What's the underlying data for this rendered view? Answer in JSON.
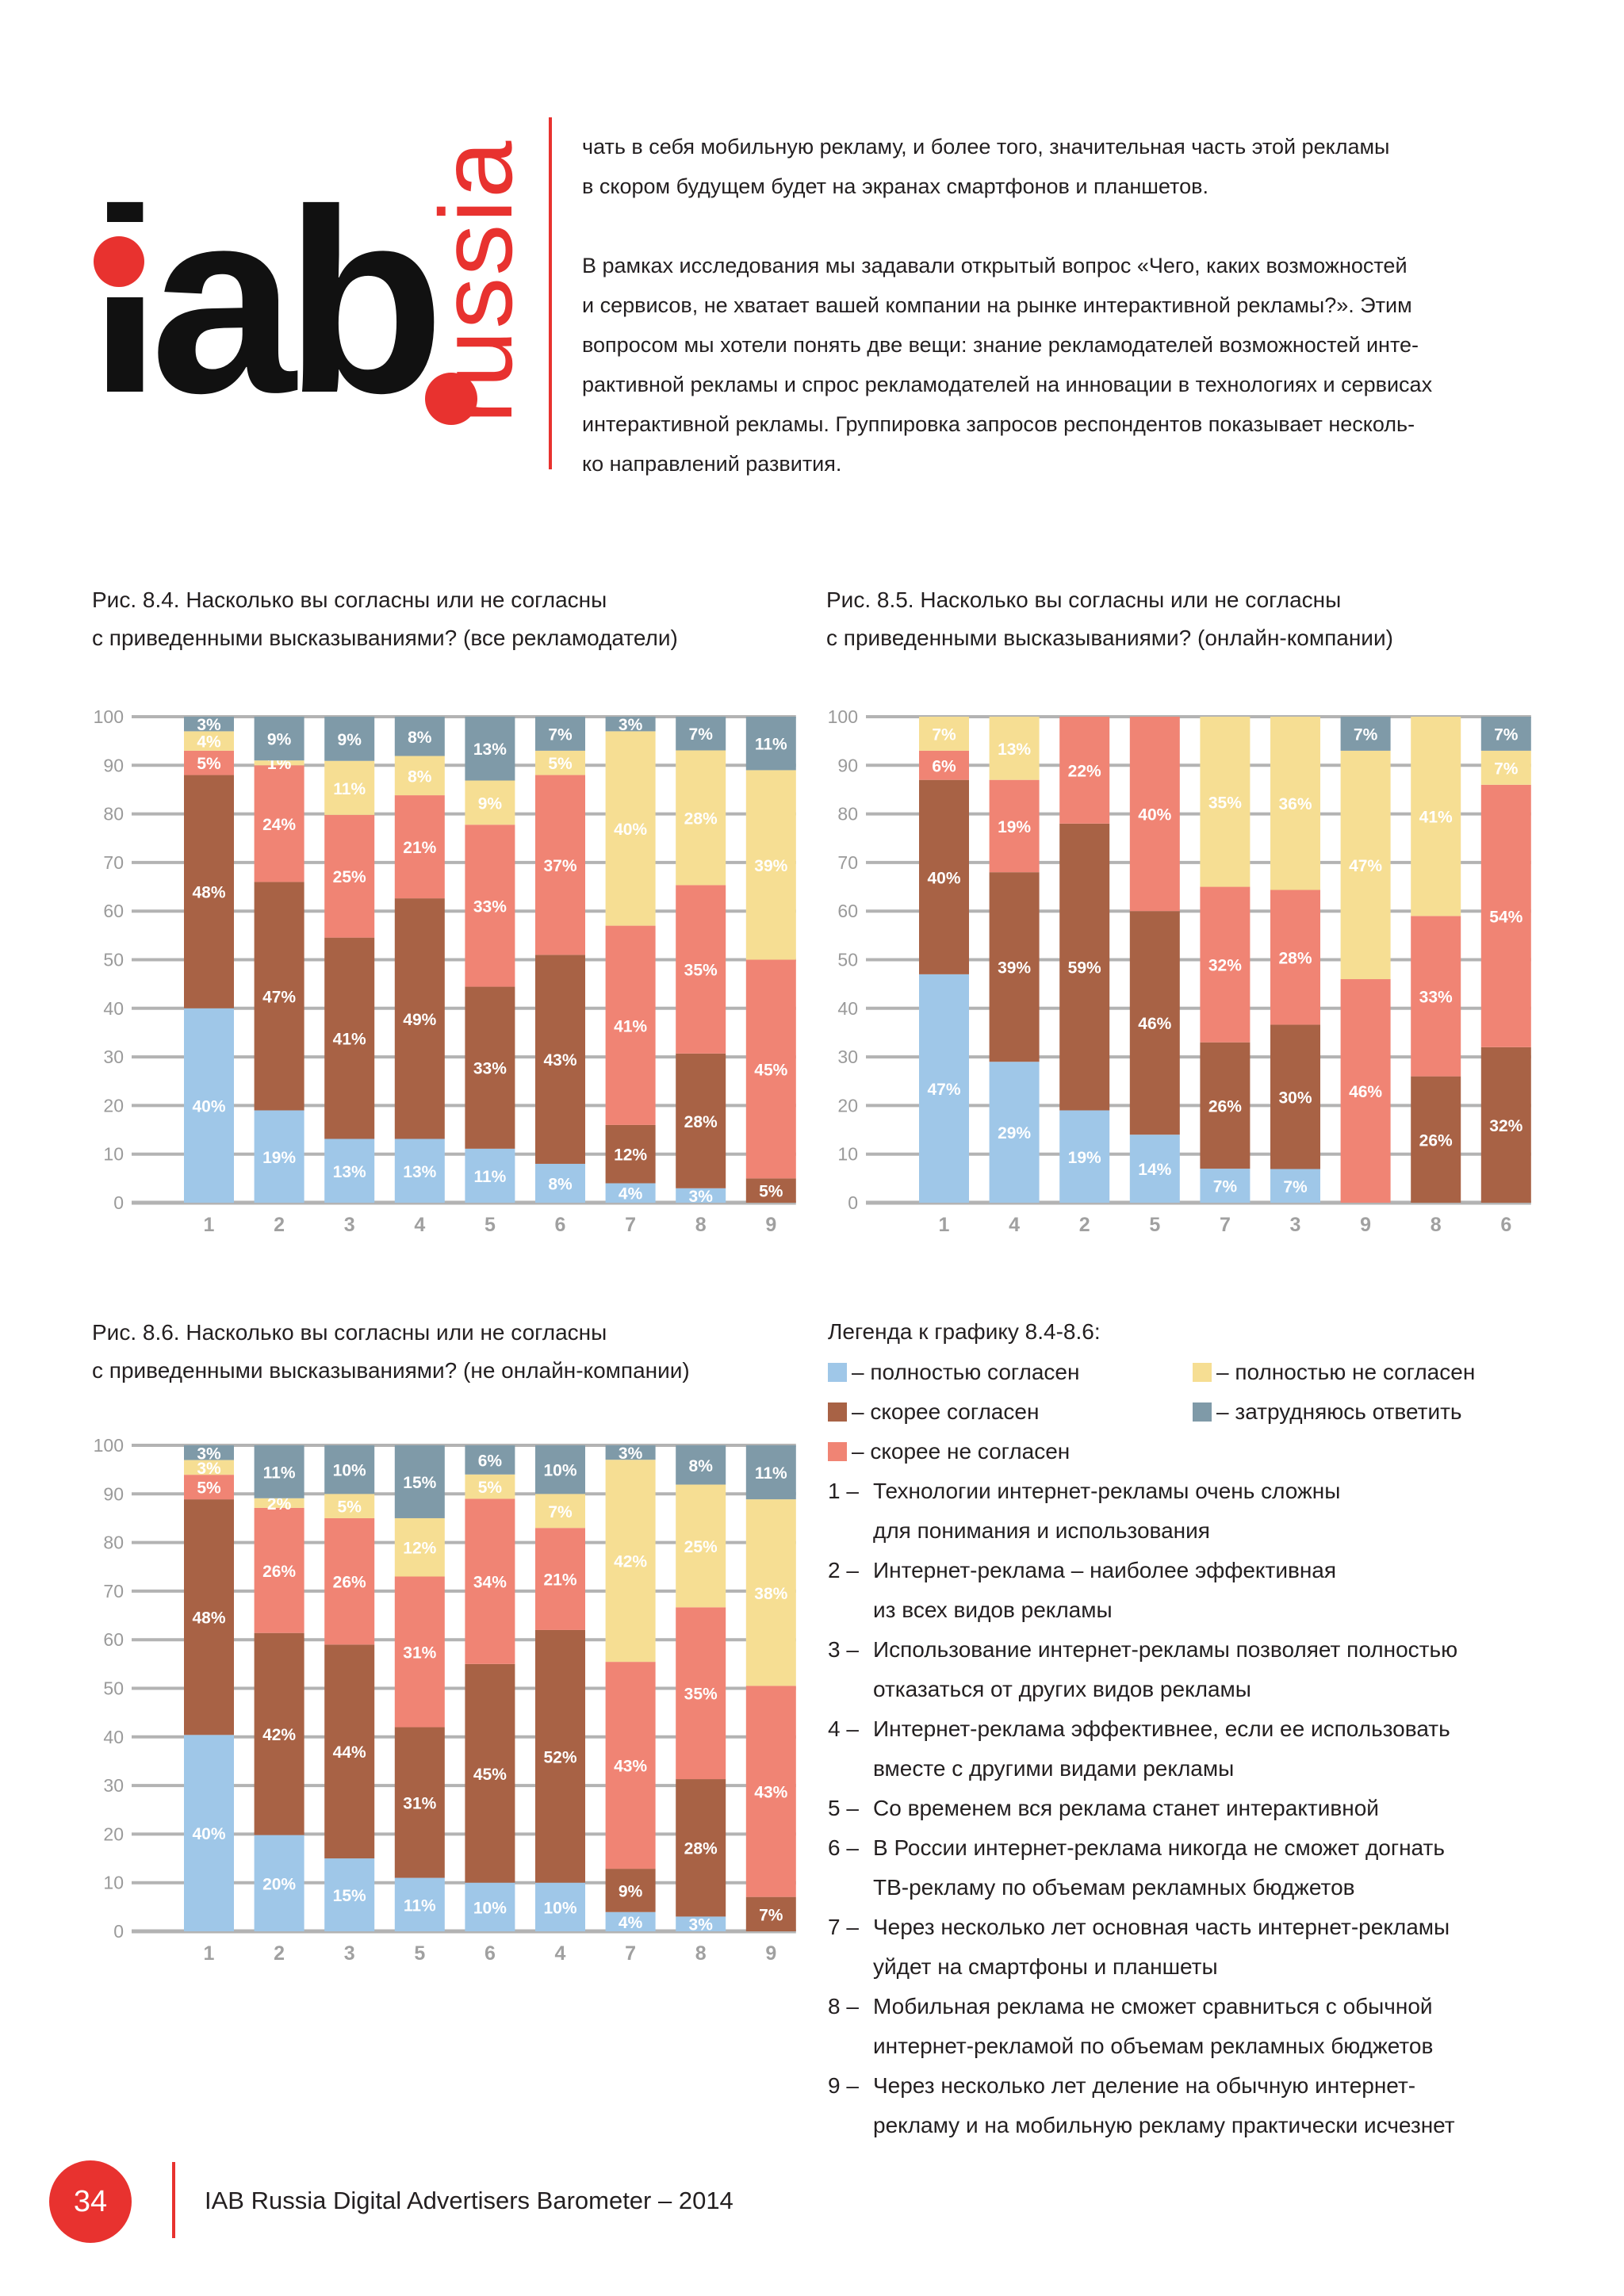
{
  "logo": {
    "main": "iab",
    "sub": "russia"
  },
  "intro": {
    "paragraph1": [
      "чать в себя мобильную рекламу, и более того, значительная часть этой рекламы",
      "в скором будущем будет на экранах смартфонов и планшетов."
    ],
    "paragraph2": [
      "В рамках исследования мы задавали открытый вопрос «Чего, каких возможностей",
      "и сервисов, не хватает вашей компании на рынке интерактивной рекламы?». Этим",
      "вопросом мы хотели понять две вещи: знание рекламодателей возможностей инте-",
      "рактивной рекламы и спрос рекламодателей на инновации в технологиях и сервисах",
      "интерактивной рекламы.  Группировка запросов респондентов показывает несколь-",
      "ко направлений развития."
    ]
  },
  "colors": {
    "fully_agree": "#9fc7e8",
    "rather_agree": "#a86245",
    "rather_disagree": "#f08474",
    "fully_disagree": "#f6de93",
    "hard_to_say": "#7f9aa8",
    "accent": "#e8322f"
  },
  "chart_data": [
    {
      "type": "bar",
      "stacked": true,
      "title": [
        "Рис. 8.4. Насколько вы согласны или не согласны",
        "с приведенными высказываниями? (все рекламодатели)"
      ],
      "ylim": [
        0,
        100
      ],
      "yticks": [
        "0",
        "10",
        "20",
        "30",
        "40",
        "50",
        "60",
        "70",
        "80",
        "90",
        "100"
      ],
      "grid": true,
      "categories": [
        "1",
        "2",
        "3",
        "4",
        "5",
        "6",
        "7",
        "8",
        "9"
      ],
      "series": [
        {
          "name": "полностью согласен",
          "values": [
            40,
            19,
            13,
            13,
            11,
            8,
            4,
            3,
            0
          ]
        },
        {
          "name": "скорее согласен",
          "values": [
            48,
            47,
            41,
            49,
            33,
            43,
            12,
            28,
            5
          ]
        },
        {
          "name": "скорее не согласен",
          "values": [
            5,
            24,
            25,
            21,
            33,
            37,
            41,
            35,
            45
          ]
        },
        {
          "name": "полностью не согласен",
          "values": [
            4,
            1,
            11,
            8,
            9,
            5,
            40,
            28,
            39
          ]
        },
        {
          "name": "затрудняюсь ответить",
          "values": [
            3,
            9,
            9,
            8,
            13,
            7,
            3,
            7,
            11
          ]
        }
      ]
    },
    {
      "type": "bar",
      "stacked": true,
      "title": [
        "Рис. 8.5. Насколько вы согласны или не согласны",
        "с приведенными высказываниями? (онлайн-компании)"
      ],
      "ylim": [
        0,
        100
      ],
      "yticks": [
        "0",
        "10",
        "20",
        "30",
        "40",
        "50",
        "60",
        "70",
        "80",
        "90",
        "100"
      ],
      "grid": true,
      "categories": [
        "1",
        "4",
        "2",
        "5",
        "7",
        "3",
        "9",
        "8",
        "6"
      ],
      "series": [
        {
          "name": "полностью согласен",
          "values": [
            47,
            29,
            19,
            14,
            7,
            7,
            0,
            0,
            0
          ]
        },
        {
          "name": "скорее согласен",
          "values": [
            40,
            39,
            59,
            46,
            26,
            30,
            0,
            26,
            32
          ]
        },
        {
          "name": "скорее не согласен",
          "values": [
            6,
            19,
            22,
            40,
            32,
            28,
            46,
            33,
            54
          ]
        },
        {
          "name": "полностью не согласен",
          "values": [
            7,
            13,
            0,
            0,
            35,
            36,
            47,
            41,
            7
          ]
        },
        {
          "name": "затрудняюсь ответить",
          "values": [
            0,
            0,
            0,
            0,
            0,
            0,
            7,
            0,
            7
          ]
        }
      ]
    },
    {
      "type": "bar",
      "stacked": true,
      "title": [
        "Рис. 8.6. Насколько вы согласны или не согласны",
        "с приведенными высказываниями? (не онлайн-компании)"
      ],
      "ylim": [
        0,
        100
      ],
      "yticks": [
        "0",
        "10",
        "20",
        "30",
        "40",
        "50",
        "60",
        "70",
        "80",
        "90",
        "100"
      ],
      "grid": true,
      "categories": [
        "1",
        "2",
        "3",
        "5",
        "6",
        "4",
        "7",
        "8",
        "9"
      ],
      "series": [
        {
          "name": "полностью согласен",
          "values": [
            40,
            20,
            15,
            11,
            10,
            10,
            4,
            3,
            0
          ]
        },
        {
          "name": "скорее согласен",
          "values": [
            48,
            42,
            44,
            31,
            45,
            52,
            9,
            28,
            7
          ]
        },
        {
          "name": "скорее не согласен",
          "values": [
            5,
            26,
            26,
            31,
            34,
            21,
            43,
            35,
            43
          ]
        },
        {
          "name": "полностью не согласен",
          "values": [
            3,
            2,
            5,
            12,
            5,
            7,
            42,
            25,
            38
          ]
        },
        {
          "name": "затрудняюсь ответить",
          "values": [
            3,
            11,
            10,
            15,
            6,
            10,
            3,
            8,
            11
          ]
        }
      ]
    }
  ],
  "legend": {
    "title": "Легенда к графику 8.4-8.6:",
    "entries": [
      {
        "label": "– полностью согласен",
        "color": "#9fc7e8"
      },
      {
        "label": "– скорее согласен",
        "color": "#a86245"
      },
      {
        "label": "– скорее не согласен",
        "color": "#f08474"
      },
      {
        "label": "– полностью не согласен",
        "color": "#f6de93"
      },
      {
        "label": "– затрудняюсь ответить",
        "color": "#7f9aa8"
      }
    ],
    "items": [
      {
        "num": "1 –",
        "line1": "Технологии интернет-рекламы очень сложны",
        "line2": "для понимания и использования"
      },
      {
        "num": "2 –",
        "line1": "Интернет-реклама – наиболее эффективная",
        "line2": "из всех видов рекламы"
      },
      {
        "num": "3 –",
        "line1": "Использование интернет-рекламы позволяет полностью",
        "line2": "отказаться от других видов рекламы"
      },
      {
        "num": "4 –",
        "line1": "Интернет-реклама эффективнее, если ее использовать",
        "line2": "вместе с другими видами рекламы"
      },
      {
        "num": "5 –",
        "line1": "Со временем вся реклама станет интерактивной",
        "line2": ""
      },
      {
        "num": "6 –",
        "line1": "В России интернет-реклама никогда не сможет догнать",
        "line2": "ТВ-рекламу по объемам рекламных бюджетов"
      },
      {
        "num": "7 –",
        "line1": "Через несколько лет основная часть интернет-рекламы",
        "line2": "уйдет на смартфоны и планшеты"
      },
      {
        "num": "8 –",
        "line1": "Мобильная реклама не сможет сравниться с обычной",
        "line2": "интернет-рекламой по объемам рекламных бюджетов"
      },
      {
        "num": "9 –",
        "line1": "Через несколько лет деление на обычную интернет-",
        "line2": "рекламу и на мобильную рекламу практически исчезнет"
      }
    ]
  },
  "footer": {
    "page_number": "34",
    "publication": "IAB Russia Digital Advertisers Barometer – 2014"
  }
}
